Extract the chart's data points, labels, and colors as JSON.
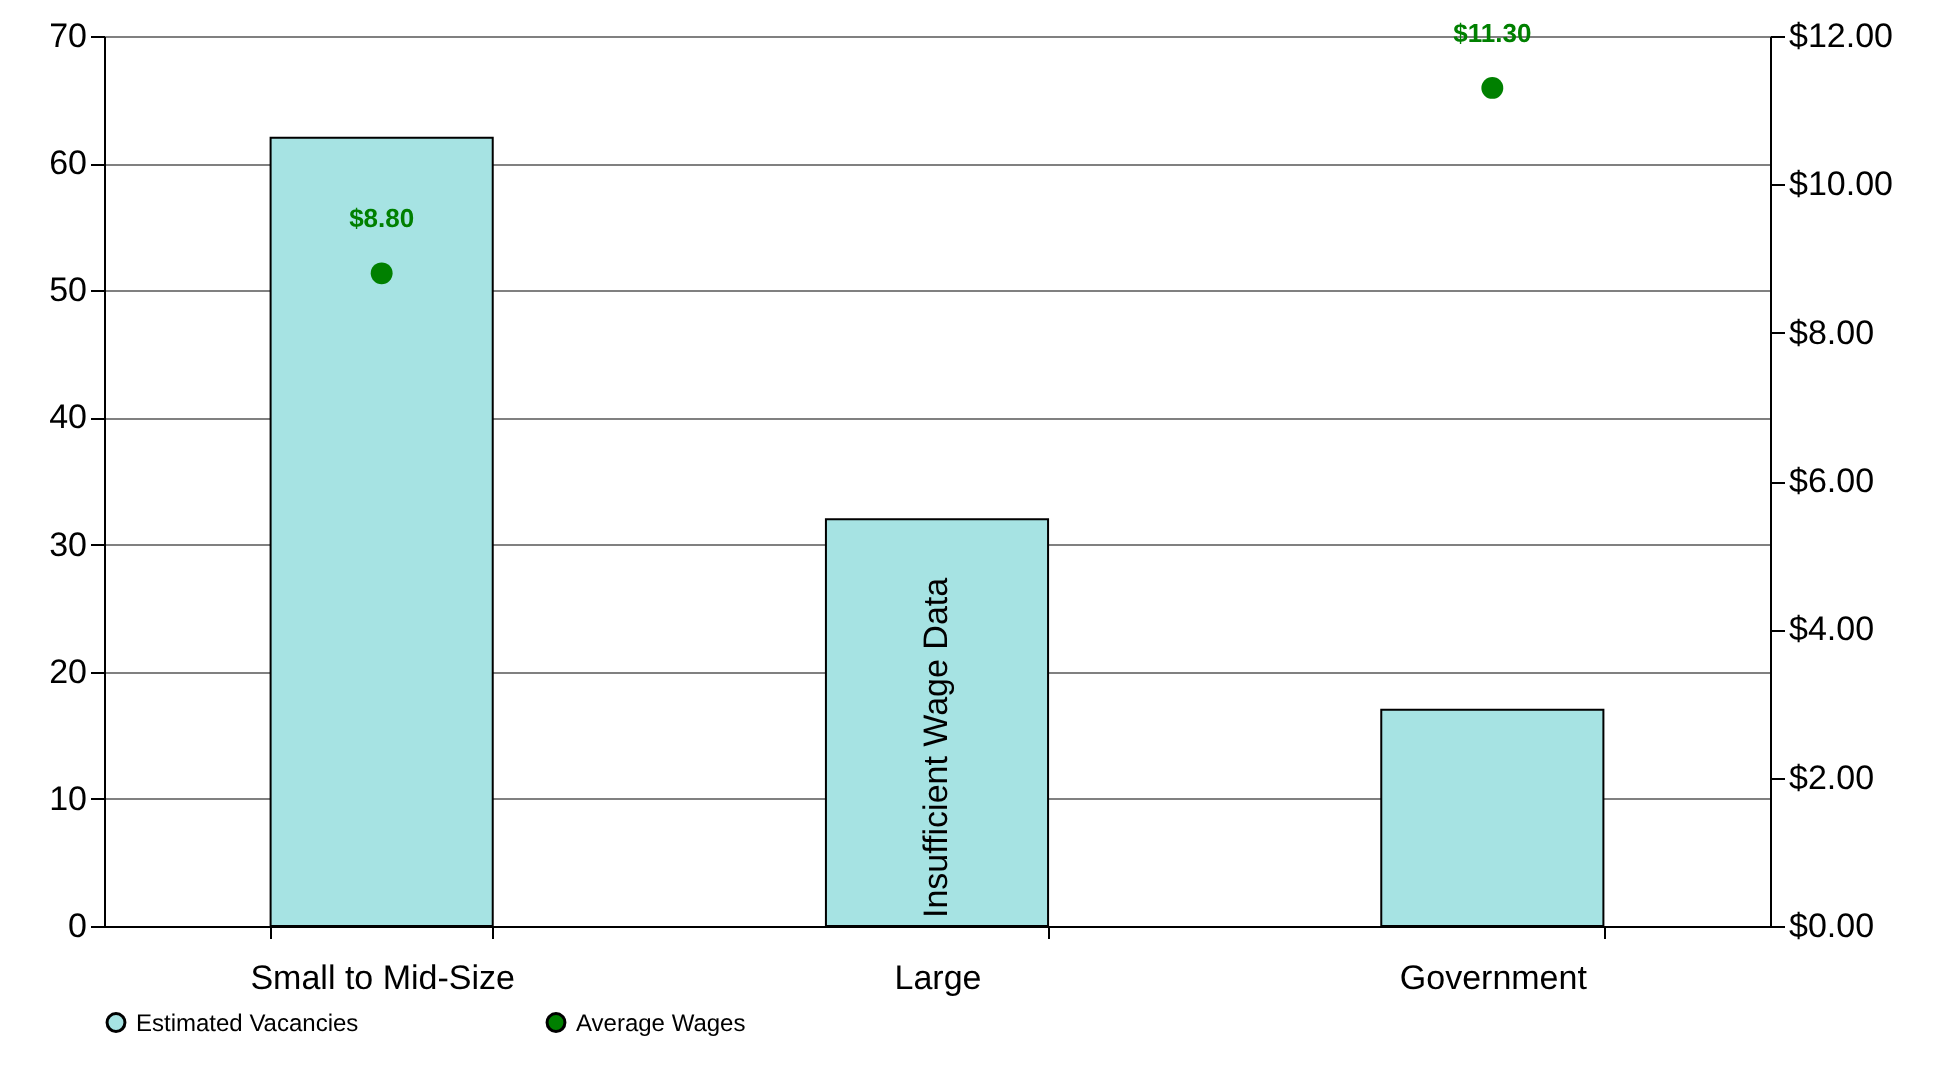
{
  "chart_data": {
    "type": "bar",
    "categories": [
      "Small to Mid-Size",
      "Large",
      "Government"
    ],
    "series": [
      {
        "name": "Estimated Vacancies",
        "color": "#a6e3e3",
        "values": [
          62,
          32,
          17
        ]
      },
      {
        "name": "Average Wages",
        "type": "scatter",
        "axis": "y2",
        "color": "#008000",
        "x": [
          "Small to Mid-Size",
          "Large",
          "Government"
        ],
        "values": [
          8.8,
          null,
          11.3
        ],
        "value_labels": [
          "$8.80",
          null,
          "$11.30"
        ]
      }
    ],
    "ylim": [
      0,
      70
    ],
    "yticks": [
      0,
      10,
      20,
      30,
      40,
      50,
      60,
      70
    ],
    "y2lim": [
      0,
      12
    ],
    "y2ticks": [
      {
        "value": 0,
        "label": "$0.00"
      },
      {
        "value": 2,
        "label": "$2.00"
      },
      {
        "value": 4,
        "label": "$4.00"
      },
      {
        "value": 6,
        "label": "$6.00"
      },
      {
        "value": 8,
        "label": "$8.00"
      },
      {
        "value": 10,
        "label": "$10.00"
      },
      {
        "value": 12,
        "label": "$12.00"
      }
    ],
    "annotations": [
      "Insufficient Wage Data"
    ],
    "grid": "y",
    "legend": "bottom",
    "marker": "circle"
  }
}
